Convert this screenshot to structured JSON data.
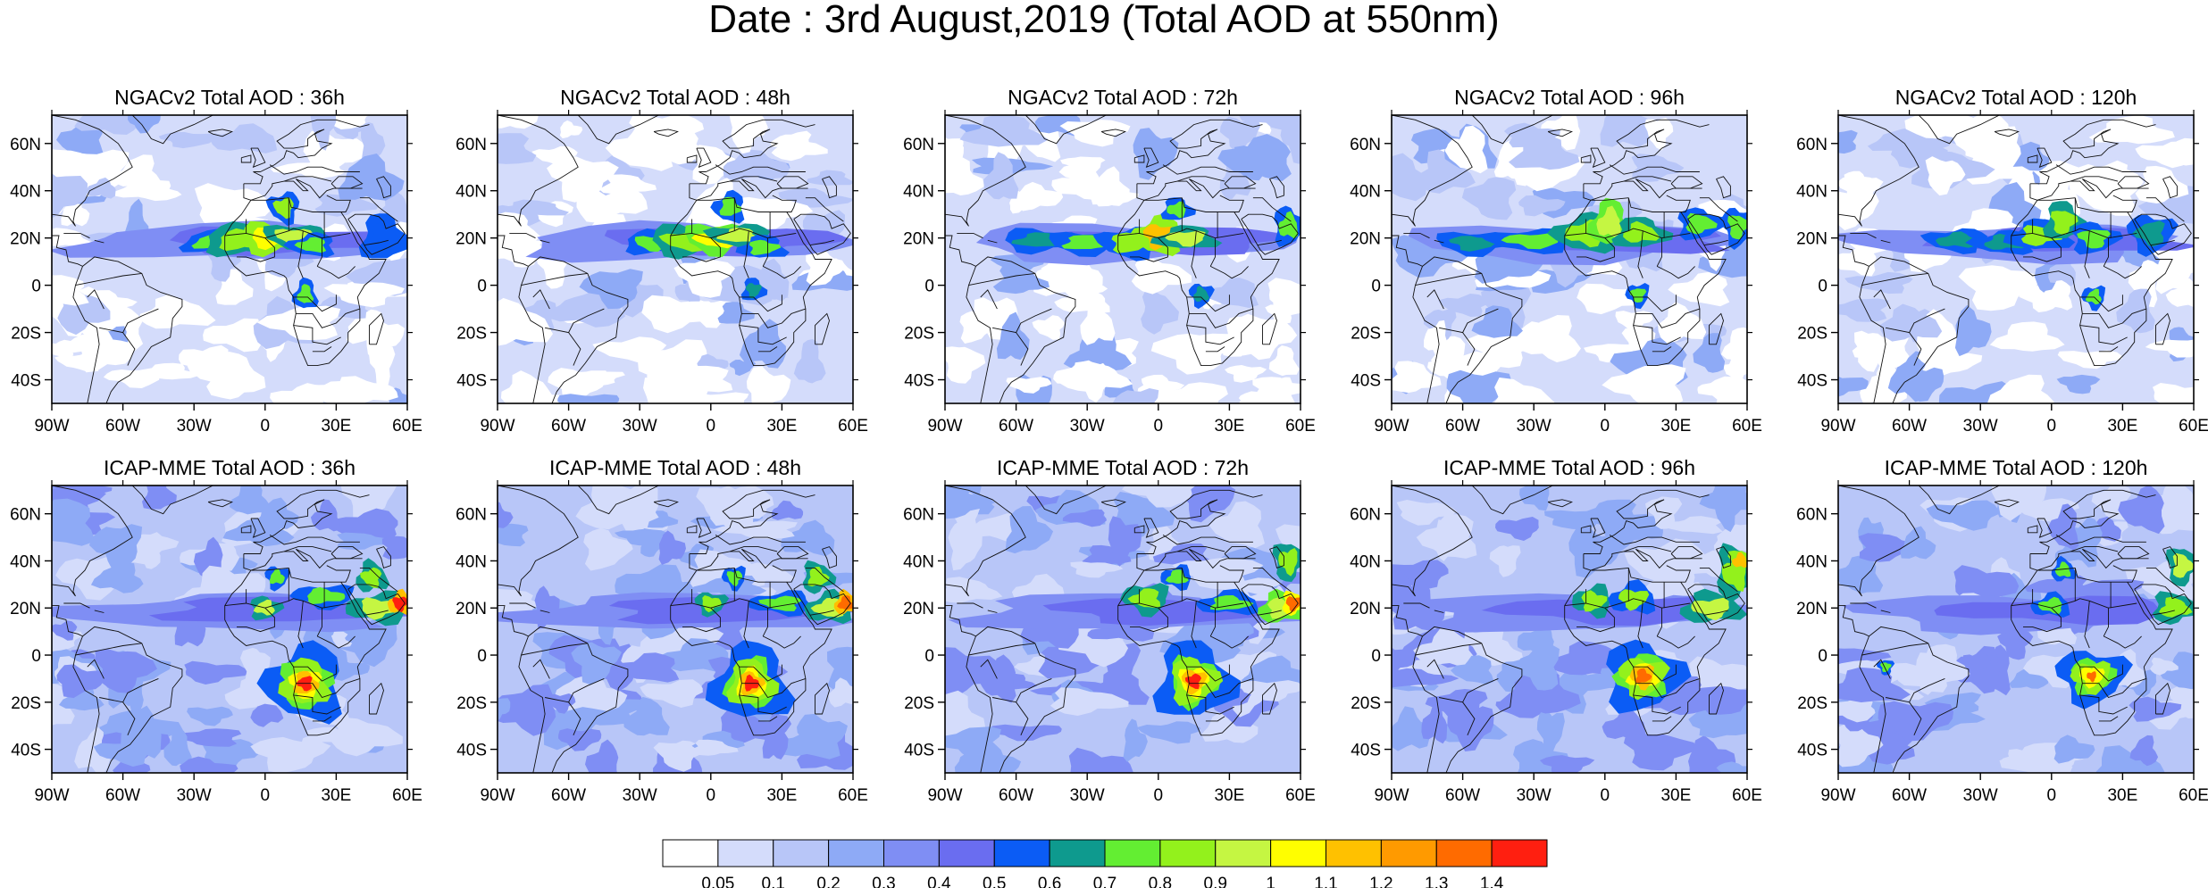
{
  "title": "Date : 3rd August,2019 (Total AOD at 550nm)",
  "panels": [
    {
      "title": "NGACv2 Total AOD : 36h",
      "model": "NGACv2",
      "lead": "36h",
      "plumes": [
        {
          "lon": -22,
          "lat": 18,
          "rlon": 8,
          "rlat": 3,
          "aod": 0.72
        },
        {
          "lon": -10,
          "lat": 19,
          "rlon": 10,
          "rlat": 4,
          "aod": 0.85
        },
        {
          "lon": 2,
          "lat": 20,
          "rlon": 8,
          "rlat": 4,
          "aod": 1.05
        },
        {
          "lon": 12,
          "lat": 21,
          "rlon": 8,
          "rlat": 3,
          "aod": 0.92
        },
        {
          "lon": 8,
          "lat": 33,
          "rlon": 4,
          "rlat": 4,
          "aod": 0.8
        },
        {
          "lon": 20,
          "lat": 17,
          "rlon": 6,
          "rlat": 3,
          "aod": 0.7
        },
        {
          "lon": 17,
          "lat": -4,
          "rlon": 3,
          "rlat": 4,
          "aod": 0.75
        },
        {
          "lon": 50,
          "lat": 20,
          "rlon": 6,
          "rlat": 6,
          "aod": 0.55
        }
      ]
    },
    {
      "title": "NGACv2 Total AOD : 48h",
      "model": "NGACv2",
      "lead": "48h",
      "plumes": [
        {
          "lon": -24,
          "lat": 18,
          "rlon": 8,
          "rlat": 3,
          "aod": 0.72
        },
        {
          "lon": -10,
          "lat": 19,
          "rlon": 10,
          "rlat": 4,
          "aod": 0.85
        },
        {
          "lon": 2,
          "lat": 20,
          "rlon": 8,
          "rlat": 4,
          "aod": 1.0
        },
        {
          "lon": 12,
          "lat": 21,
          "rlon": 8,
          "rlat": 3,
          "aod": 0.9
        },
        {
          "lon": 8,
          "lat": 33,
          "rlon": 4,
          "rlat": 4,
          "aod": 0.78
        },
        {
          "lon": 22,
          "lat": 16,
          "rlon": 6,
          "rlat": 3,
          "aod": 0.7
        },
        {
          "lon": 18,
          "lat": -2,
          "rlon": 3,
          "rlat": 3,
          "aod": 0.6
        }
      ]
    },
    {
      "title": "NGACv2 Total AOD : 72h",
      "model": "NGACv2",
      "lead": "72h",
      "plumes": [
        {
          "lon": -50,
          "lat": 19,
          "rlon": 10,
          "rlat": 3,
          "aod": 0.68
        },
        {
          "lon": -30,
          "lat": 18,
          "rlon": 10,
          "rlat": 3,
          "aod": 0.72
        },
        {
          "lon": -12,
          "lat": 18,
          "rlon": 8,
          "rlat": 4,
          "aod": 0.82
        },
        {
          "lon": 0,
          "lat": 21,
          "rlon": 6,
          "rlat": 5,
          "aod": 1.1
        },
        {
          "lon": 12,
          "lat": 20,
          "rlon": 8,
          "rlat": 3,
          "aod": 0.9
        },
        {
          "lon": 8,
          "lat": 32,
          "rlon": 4,
          "rlat": 3,
          "aod": 0.75
        },
        {
          "lon": 55,
          "lat": 25,
          "rlon": 4,
          "rlat": 5,
          "aod": 0.7
        },
        {
          "lon": 18,
          "lat": -4,
          "rlon": 3,
          "rlat": 3,
          "aod": 0.6
        }
      ]
    },
    {
      "title": "NGACv2 Total AOD : 96h",
      "model": "NGACv2",
      "lead": "96h",
      "plumes": [
        {
          "lon": -55,
          "lat": 18,
          "rlon": 10,
          "rlat": 3,
          "aod": 0.65
        },
        {
          "lon": -30,
          "lat": 19,
          "rlon": 12,
          "rlat": 3,
          "aod": 0.7
        },
        {
          "lon": -8,
          "lat": 22,
          "rlon": 8,
          "rlat": 5,
          "aod": 0.85
        },
        {
          "lon": 2,
          "lat": 26,
          "rlon": 5,
          "rlat": 6,
          "aod": 0.95
        },
        {
          "lon": 15,
          "lat": 22,
          "rlon": 7,
          "rlat": 4,
          "aod": 0.85
        },
        {
          "lon": 40,
          "lat": 26,
          "rlon": 6,
          "rlat": 4,
          "aod": 0.72
        },
        {
          "lon": 56,
          "lat": 25,
          "rlon": 4,
          "rlat": 5,
          "aod": 0.75
        },
        {
          "lon": 14,
          "lat": -4,
          "rlon": 3,
          "rlat": 3,
          "aod": 0.7
        }
      ]
    },
    {
      "title": "NGACv2 Total AOD : 120h",
      "model": "NGACv2",
      "lead": "120h",
      "plumes": [
        {
          "lon": -40,
          "lat": 19,
          "rlon": 8,
          "rlat": 3,
          "aod": 0.6
        },
        {
          "lon": -20,
          "lat": 18,
          "rlon": 8,
          "rlat": 3,
          "aod": 0.62
        },
        {
          "lon": -5,
          "lat": 21,
          "rlon": 8,
          "rlat": 4,
          "aod": 0.8
        },
        {
          "lon": 5,
          "lat": 27,
          "rlon": 5,
          "rlat": 5,
          "aod": 0.88
        },
        {
          "lon": 18,
          "lat": 20,
          "rlon": 6,
          "rlat": 4,
          "aod": 0.75
        },
        {
          "lon": 42,
          "lat": 22,
          "rlon": 6,
          "rlat": 5,
          "aod": 0.65
        },
        {
          "lon": 18,
          "lat": -5,
          "rlon": 3,
          "rlat": 3,
          "aod": 0.72
        }
      ]
    },
    {
      "title": "ICAP-MME Total AOD : 36h",
      "model": "ICAP-MME",
      "lead": "36h",
      "plumes": [
        {
          "lon": 17,
          "lat": -12,
          "rlon": 10,
          "rlat": 10,
          "aod": 0.75
        },
        {
          "lon": 17,
          "lat": -12,
          "rlon": 6,
          "rlat": 6,
          "aod": 1.05
        },
        {
          "lon": 17,
          "lat": -12,
          "rlon": 3,
          "rlat": 3,
          "aod": 1.4
        },
        {
          "lon": 0,
          "lat": 20,
          "rlon": 4,
          "rlat": 3,
          "aod": 0.9
        },
        {
          "lon": 5,
          "lat": 33,
          "rlon": 3,
          "rlat": 3,
          "aod": 0.75
        },
        {
          "lon": 25,
          "lat": 25,
          "rlon": 8,
          "rlat": 3,
          "aod": 0.72
        },
        {
          "lon": 48,
          "lat": 20,
          "rlon": 8,
          "rlat": 4,
          "aod": 0.9
        },
        {
          "lon": 57,
          "lat": 22,
          "rlon": 3,
          "rlat": 3,
          "aod": 1.4
        },
        {
          "lon": 45,
          "lat": 33,
          "rlon": 4,
          "rlat": 4,
          "aod": 0.85
        }
      ]
    },
    {
      "title": "ICAP-MME Total AOD : 48h",
      "model": "ICAP-MME",
      "lead": "48h",
      "plumes": [
        {
          "lon": 17,
          "lat": -12,
          "rlon": 10,
          "rlat": 10,
          "aod": 0.75
        },
        {
          "lon": 17,
          "lat": -12,
          "rlon": 6,
          "rlat": 6,
          "aod": 1.05
        },
        {
          "lon": 17,
          "lat": -12,
          "rlon": 3,
          "rlat": 3,
          "aod": 1.4
        },
        {
          "lon": 0,
          "lat": 22,
          "rlon": 4,
          "rlat": 3,
          "aod": 0.85
        },
        {
          "lon": 10,
          "lat": 33,
          "rlon": 3,
          "rlat": 3,
          "aod": 0.75
        },
        {
          "lon": 30,
          "lat": 22,
          "rlon": 8,
          "rlat": 3,
          "aod": 0.75
        },
        {
          "lon": 50,
          "lat": 20,
          "rlon": 6,
          "rlat": 4,
          "aod": 0.9
        },
        {
          "lon": 57,
          "lat": 22,
          "rlon": 3,
          "rlat": 3,
          "aod": 1.35
        },
        {
          "lon": 45,
          "lat": 33,
          "rlon": 4,
          "rlat": 4,
          "aod": 0.85
        }
      ]
    },
    {
      "title": "ICAP-MME Total AOD : 72h",
      "model": "ICAP-MME",
      "lead": "72h",
      "plumes": [
        {
          "lon": 15,
          "lat": -11,
          "rlon": 10,
          "rlat": 10,
          "aod": 0.75
        },
        {
          "lon": 15,
          "lat": -11,
          "rlon": 6,
          "rlat": 6,
          "aod": 1.05
        },
        {
          "lon": 15,
          "lat": -11,
          "rlon": 3,
          "rlat": 3,
          "aod": 1.4
        },
        {
          "lon": -5,
          "lat": 24,
          "rlon": 6,
          "rlat": 4,
          "aod": 0.85
        },
        {
          "lon": 8,
          "lat": 33,
          "rlon": 4,
          "rlat": 3,
          "aod": 0.75
        },
        {
          "lon": 30,
          "lat": 22,
          "rlon": 8,
          "rlat": 3,
          "aod": 0.72
        },
        {
          "lon": 52,
          "lat": 20,
          "rlon": 6,
          "rlat": 4,
          "aod": 0.95
        },
        {
          "lon": 57,
          "lat": 22,
          "rlon": 3,
          "rlat": 3,
          "aod": 1.3
        },
        {
          "lon": 55,
          "lat": 40,
          "rlon": 4,
          "rlat": 5,
          "aod": 0.85
        }
      ]
    },
    {
      "title": "ICAP-MME Total AOD : 96h",
      "model": "ICAP-MME",
      "lead": "96h",
      "plumes": [
        {
          "lon": 16,
          "lat": -9,
          "rlon": 10,
          "rlat": 9,
          "aod": 0.75
        },
        {
          "lon": 16,
          "lat": -9,
          "rlon": 6,
          "rlat": 5,
          "aod": 1.05
        },
        {
          "lon": 16,
          "lat": -9,
          "rlon": 3,
          "rlat": 3,
          "aod": 1.35
        },
        {
          "lon": -5,
          "lat": 23,
          "rlon": 5,
          "rlat": 4,
          "aod": 0.85
        },
        {
          "lon": 12,
          "lat": 24,
          "rlon": 6,
          "rlat": 4,
          "aod": 0.8
        },
        {
          "lon": 45,
          "lat": 20,
          "rlon": 8,
          "rlat": 4,
          "aod": 0.9
        },
        {
          "lon": 55,
          "lat": 35,
          "rlon": 5,
          "rlat": 7,
          "aod": 0.85
        },
        {
          "lon": 57,
          "lat": 40,
          "rlon": 3,
          "rlat": 3,
          "aod": 1.1
        }
      ]
    },
    {
      "title": "ICAP-MME Total AOD : 120h",
      "model": "ICAP-MME",
      "lead": "120h",
      "plumes": [
        {
          "lon": 17,
          "lat": -9,
          "rlon": 9,
          "rlat": 7,
          "aod": 0.75
        },
        {
          "lon": 17,
          "lat": -9,
          "rlon": 5,
          "rlat": 4,
          "aod": 1.05
        },
        {
          "lon": 17,
          "lat": -9,
          "rlon": 2,
          "rlat": 2,
          "aod": 1.3
        },
        {
          "lon": 0,
          "lat": 21,
          "rlon": 5,
          "rlat": 3,
          "aod": 0.78
        },
        {
          "lon": 5,
          "lat": 36,
          "rlon": 3,
          "rlat": 3,
          "aod": 0.72
        },
        {
          "lon": 52,
          "lat": 20,
          "rlon": 6,
          "rlat": 4,
          "aod": 0.88
        },
        {
          "lon": 55,
          "lat": 38,
          "rlon": 4,
          "rlat": 5,
          "aod": 0.9
        },
        {
          "lon": -70,
          "lat": -5,
          "rlon": 2,
          "rlat": 2,
          "aod": 0.75
        }
      ]
    }
  ],
  "map_extent": {
    "lon": [
      -90,
      60
    ],
    "lat": [
      -50,
      72
    ]
  },
  "x_ticks": [
    {
      "value": -90,
      "label": "90W"
    },
    {
      "value": -60,
      "label": "60W"
    },
    {
      "value": -30,
      "label": "30W"
    },
    {
      "value": 0,
      "label": "0"
    },
    {
      "value": 30,
      "label": "30E"
    },
    {
      "value": 60,
      "label": "60E"
    }
  ],
  "y_ticks": [
    {
      "value": 60,
      "label": "60N"
    },
    {
      "value": 40,
      "label": "40N"
    },
    {
      "value": 20,
      "label": "20N"
    },
    {
      "value": 0,
      "label": "0"
    },
    {
      "value": -20,
      "label": "20S"
    },
    {
      "value": -40,
      "label": "40S"
    }
  ],
  "colorbar": {
    "colors": [
      "#ffffff",
      "#d4dcfb",
      "#b8c6f8",
      "#8eaaf6",
      "#7f8ef4",
      "#6a6df0",
      "#0b5cf5",
      "#0e9a8e",
      "#63ee32",
      "#93f11c",
      "#c5f642",
      "#fffe00",
      "#ffc100",
      "#ff9a00",
      "#ff6b00",
      "#ff1f10"
    ],
    "labels": [
      "0.05",
      "0.1",
      "0.2",
      "0.3",
      "0.4",
      "0.5",
      "0.6",
      "0.7",
      "0.8",
      "0.9",
      "1",
      "1.1",
      "1.2",
      "1.3",
      "1.4"
    ],
    "thresholds": [
      0.05,
      0.1,
      0.2,
      0.3,
      0.4,
      0.5,
      0.6,
      0.7,
      0.8,
      0.9,
      1.0,
      1.1,
      1.2,
      1.3,
      1.4
    ]
  }
}
